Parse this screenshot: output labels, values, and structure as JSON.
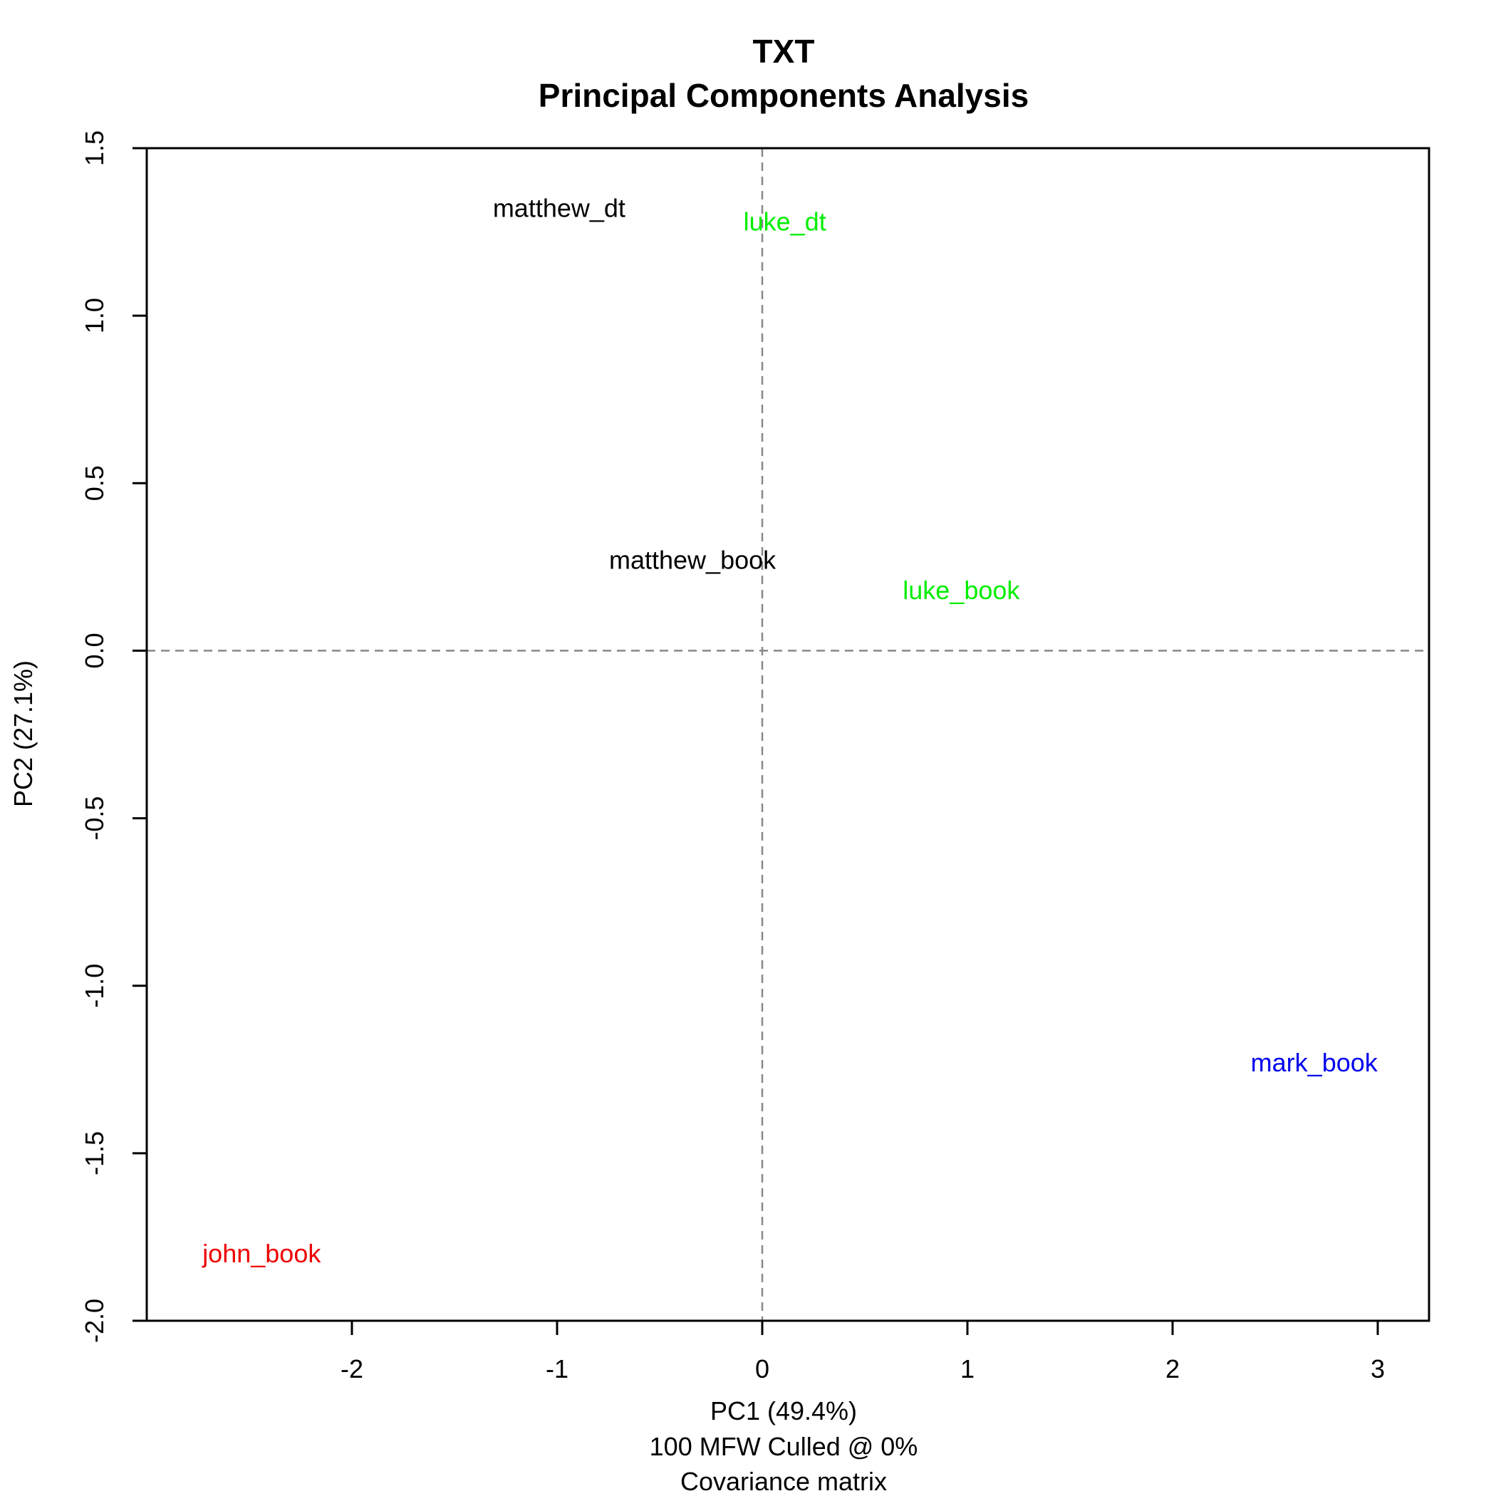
{
  "chart_data": {
    "type": "scatter",
    "title": "TXT",
    "subtitle": "Principal Components Analysis",
    "xlabel": "PC1 (49.4%)",
    "xlabel_notes": [
      "100 MFW  Culled @ 0%",
      "Covariance matrix"
    ],
    "ylabel": "PC2 (27.1%)",
    "xlim": [
      -3.0,
      3.25
    ],
    "ylim": [
      -2.0,
      1.5
    ],
    "x_ticks": [
      -2,
      -1,
      0,
      1,
      2,
      3
    ],
    "x_tick_labels": [
      "-2",
      "-1",
      "0",
      "1",
      "2",
      "3"
    ],
    "y_ticks": [
      -2.0,
      -1.5,
      -1.0,
      -0.5,
      0.0,
      0.5,
      1.0,
      1.5
    ],
    "y_tick_labels": [
      "-2.0",
      "-1.5",
      "-1.0",
      "-0.5",
      "0.0",
      "0.5",
      "1.0",
      "1.5"
    ],
    "reference_lines": {
      "x": 0,
      "y": 0,
      "style": "dashed",
      "color": "#888888"
    },
    "grid": false,
    "points": [
      {
        "label": "matthew_dt",
        "x": -0.99,
        "y": 1.32,
        "color": "#000000"
      },
      {
        "label": "luke_dt",
        "x": 0.11,
        "y": 1.28,
        "color": "#00ee00"
      },
      {
        "label": "matthew_book",
        "x": -0.34,
        "y": 0.27,
        "color": "#000000"
      },
      {
        "label": "luke_book",
        "x": 0.97,
        "y": 0.18,
        "color": "#00ee00"
      },
      {
        "label": "mark_book",
        "x": 2.69,
        "y": -1.23,
        "color": "#0000ee"
      },
      {
        "label": "john_book",
        "x": -2.44,
        "y": -1.8,
        "color": "#ee0000"
      }
    ]
  }
}
